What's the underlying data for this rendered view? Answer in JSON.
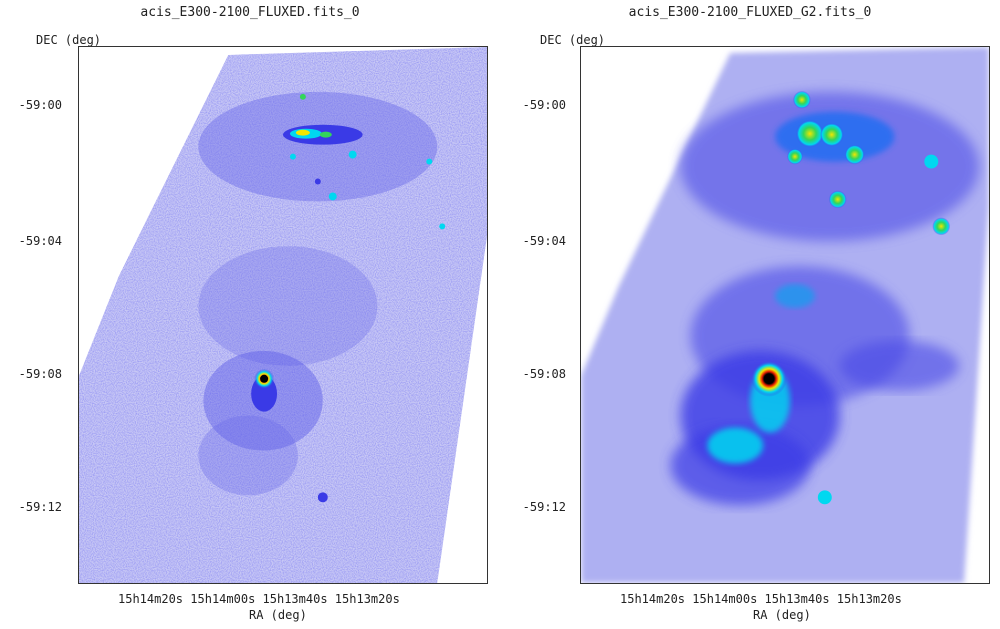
{
  "panels": [
    {
      "title": "acis_E300-2100_FLUXED.fits_0",
      "ylabel": "DEC (deg)",
      "xlabel": "RA (deg)",
      "yticks": [
        "-59:00",
        "-59:04",
        "-59:08",
        "-59:12"
      ],
      "xticks": [
        "15h14m20s",
        "15h14m00s",
        "15h13m40s",
        "15h13m20s"
      ]
    },
    {
      "title": "acis_E300-2100_FLUXED_G2.fits_0",
      "ylabel": "DEC (deg)",
      "xlabel": "RA (deg)",
      "yticks": [
        "-59:00",
        "-59:04",
        "-59:08",
        "-59:12"
      ],
      "xticks": [
        "15h14m20s",
        "15h14m00s",
        "15h13m40s",
        "15h13m20s"
      ]
    }
  ],
  "colors": {
    "background_low": "#c8c8f5",
    "mid_blue": "#3a3ae6",
    "cyan": "#00d8f0",
    "green": "#33d65a",
    "yellow": "#f2e600",
    "red": "#e81e00",
    "black": "#000000"
  }
}
